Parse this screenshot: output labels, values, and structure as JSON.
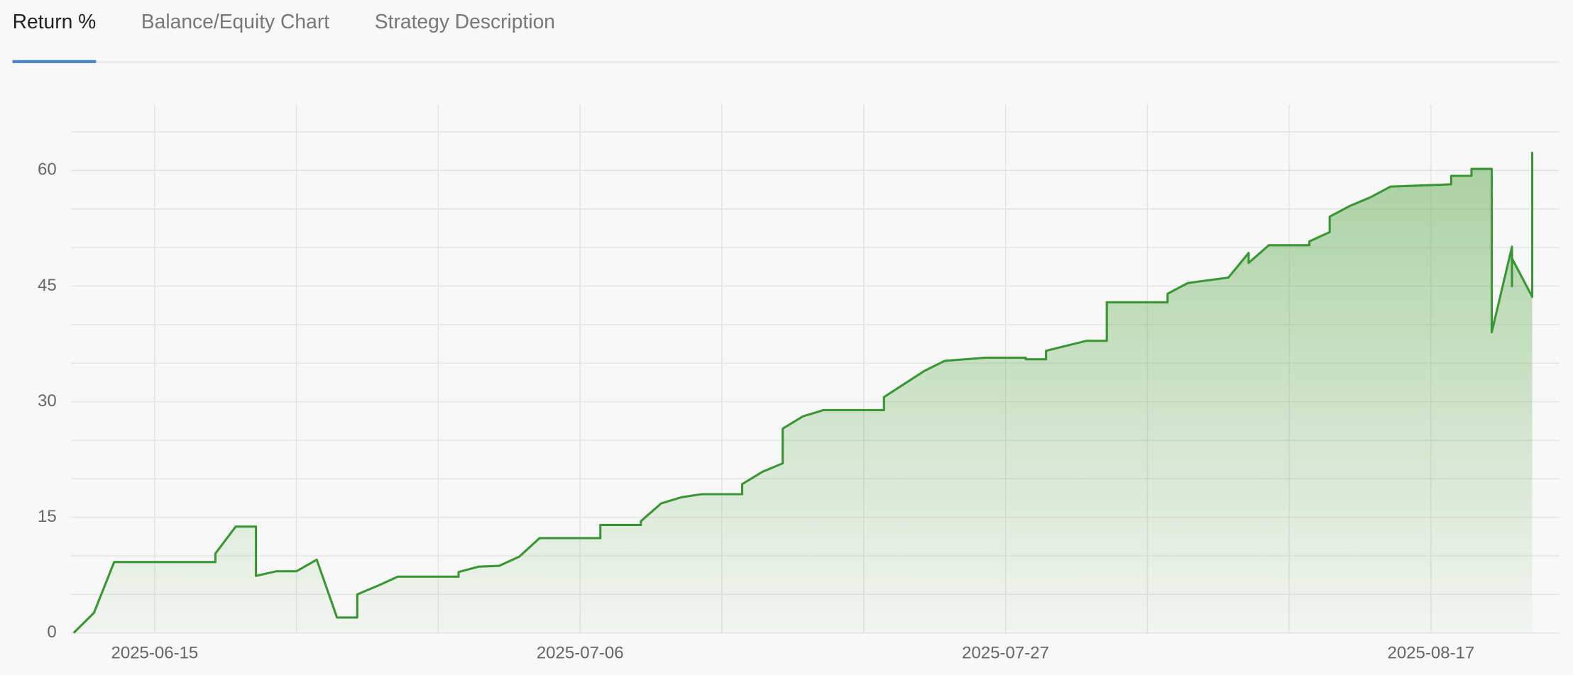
{
  "tabs": [
    {
      "label": "Return %",
      "active": true
    },
    {
      "label": "Balance/Equity Chart",
      "active": false
    },
    {
      "label": "Strategy Description",
      "active": false
    }
  ],
  "chart_data": {
    "type": "area",
    "color": "#3a9634",
    "x": [
      "2025-06-11",
      "2025-06-12",
      "2025-06-13",
      "2025-06-18",
      "2025-06-18",
      "2025-06-19",
      "2025-06-20",
      "2025-06-20",
      "2025-06-21",
      "2025-06-22",
      "2025-06-23",
      "2025-06-24",
      "2025-06-25",
      "2025-06-25",
      "2025-06-26",
      "2025-06-27",
      "2025-06-30",
      "2025-06-30",
      "2025-07-01",
      "2025-07-02",
      "2025-07-03",
      "2025-07-04",
      "2025-07-07",
      "2025-07-07",
      "2025-07-09",
      "2025-07-09",
      "2025-07-10",
      "2025-07-11",
      "2025-07-12",
      "2025-07-14",
      "2025-07-14",
      "2025-07-15",
      "2025-07-16",
      "2025-07-16",
      "2025-07-17",
      "2025-07-18",
      "2025-07-21",
      "2025-07-21",
      "2025-07-22",
      "2025-07-23",
      "2025-07-24",
      "2025-07-26",
      "2025-07-28",
      "2025-07-28",
      "2025-07-29",
      "2025-07-29",
      "2025-07-31",
      "2025-08-01",
      "2025-08-01",
      "2025-08-04",
      "2025-08-04",
      "2025-08-05",
      "2025-08-07",
      "2025-08-08",
      "2025-08-08",
      "2025-08-09",
      "2025-08-11",
      "2025-08-11",
      "2025-08-12",
      "2025-08-12",
      "2025-08-13",
      "2025-08-14",
      "2025-08-15",
      "2025-08-18",
      "2025-08-18",
      "2025-08-19",
      "2025-08-19",
      "2025-08-20",
      "2025-08-20",
      "2025-08-21",
      "2025-08-21",
      "2025-08-21",
      "2025-08-22",
      "2025-08-22",
      "2025-08-22"
    ],
    "values": [
      0,
      2.6,
      9.2,
      9.2,
      10.3,
      13.8,
      13.8,
      7.4,
      8.0,
      8.0,
      9.5,
      2.0,
      2.0,
      5.0,
      6.1,
      7.3,
      7.3,
      7.9,
      8.6,
      8.7,
      9.9,
      12.3,
      12.3,
      14.0,
      14.0,
      14.5,
      16.8,
      17.6,
      18.0,
      18.0,
      19.3,
      20.9,
      22.0,
      26.5,
      28.1,
      28.9,
      28.9,
      30.6,
      32.3,
      34.0,
      35.3,
      35.7,
      35.7,
      35.5,
      35.5,
      36.6,
      37.9,
      37.9,
      42.9,
      42.9,
      44.0,
      45.4,
      46.1,
      49.3,
      48.0,
      50.3,
      50.3,
      50.8,
      52.0,
      54.0,
      55.4,
      56.5,
      57.9,
      58.2,
      59.3,
      59.3,
      60.2,
      60.2,
      39.0,
      50.1,
      45.0,
      48.6,
      43.6,
      62.3,
      61.9
    ],
    "xlim": [
      "2025-06-11",
      "2025-08-23"
    ],
    "xticks": [
      "2025-06-15",
      "2025-07-06",
      "2025-07-27",
      "2025-08-17"
    ],
    "xgrid": [
      "2025-06-15",
      "2025-06-22",
      "2025-06-29",
      "2025-07-06",
      "2025-07-13",
      "2025-07-20",
      "2025-07-27",
      "2025-08-03",
      "2025-08-10",
      "2025-08-17"
    ],
    "ylim": [
      0,
      68.6
    ],
    "yticks": [
      0,
      15,
      30,
      45,
      60
    ],
    "ygrid": [
      0,
      5,
      10,
      15,
      20,
      25,
      30,
      35,
      40,
      45,
      50,
      55,
      60,
      65
    ]
  }
}
